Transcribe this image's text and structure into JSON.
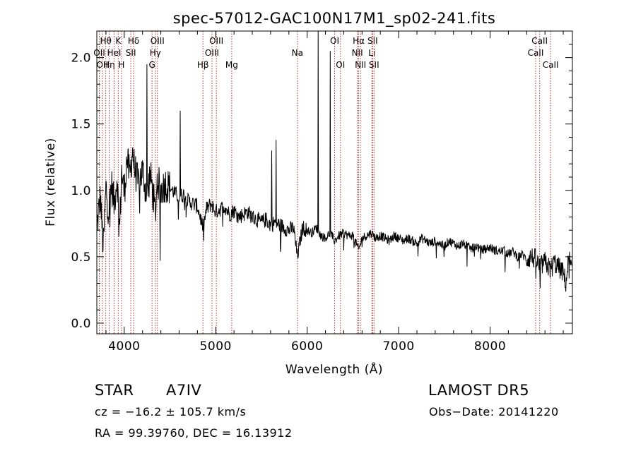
{
  "chart_data": {
    "type": "line",
    "title": "spec-57012-GAC100N17M1_sp02-241.fits",
    "xlabel": "Wavelength (Å)",
    "ylabel": "Flux (relative)",
    "xlim": [
      3700,
      8900
    ],
    "ylim": [
      -0.08,
      2.2
    ],
    "xticks": [
      4000,
      5000,
      6000,
      7000,
      8000
    ],
    "xtick_labels": [
      "4000",
      "5000",
      "6000",
      "7000",
      "8000"
    ],
    "yticks": [
      0.0,
      0.5,
      1.0,
      1.5,
      2.0
    ],
    "ytick_labels": [
      "0.0",
      "0.5",
      "1.0",
      "1.5",
      "2.0"
    ],
    "grid": false,
    "legend": "none",
    "line_color": "#000000",
    "marker_line_color": "#b03030",
    "series": [
      {
        "x": [
          3700,
          3740,
          3770,
          3800,
          3830,
          3860,
          3890,
          3920,
          3950,
          3970,
          4000,
          4030,
          4060,
          4090,
          4110,
          4150,
          4200,
          4250,
          4280,
          4300,
          4340,
          4360,
          4400,
          4450,
          4500,
          4550,
          4600,
          4650,
          4700,
          4750,
          4800,
          4862,
          4900,
          4950,
          5000,
          5050,
          5100,
          5150,
          5200,
          5250,
          5300,
          5350,
          5400,
          5450,
          5500,
          5550,
          5600,
          5650,
          5700,
          5750,
          5800,
          5850,
          5893,
          5950,
          6000,
          6050,
          6100,
          6150,
          6200,
          6250,
          6300,
          6350,
          6400,
          6450,
          6500,
          6563,
          6600,
          6650,
          6700,
          6750,
          6800,
          6850,
          6900,
          6950,
          7000,
          7050,
          7100,
          7150,
          7200,
          7250,
          7300,
          7350,
          7400,
          7450,
          7500,
          7550,
          7600,
          7650,
          7700,
          7750,
          7800,
          7850,
          7900,
          7950,
          8000,
          8050,
          8100,
          8150,
          8200,
          8250,
          8300,
          8350,
          8400,
          8450,
          8500,
          8542,
          8600,
          8662,
          8700,
          8750,
          8800,
          8830,
          8860,
          8890
        ],
        "y": [
          0.72,
          0.95,
          0.55,
          1.02,
          0.85,
          1.05,
          0.9,
          1.1,
          0.7,
          1.15,
          0.98,
          1.25,
          1.1,
          1.3,
          1.18,
          1.05,
          1.15,
          0.95,
          1.12,
          1.05,
          0.82,
          1.08,
          1.0,
          1.05,
          1.02,
          0.98,
          0.95,
          0.97,
          0.92,
          0.9,
          0.88,
          0.72,
          0.86,
          0.9,
          0.84,
          0.86,
          0.88,
          0.82,
          0.85,
          0.8,
          0.82,
          0.84,
          0.8,
          0.78,
          0.76,
          0.78,
          0.74,
          0.76,
          0.74,
          0.72,
          0.7,
          0.72,
          0.5,
          0.72,
          0.7,
          0.68,
          0.72,
          0.66,
          0.64,
          0.68,
          0.62,
          0.66,
          0.68,
          0.66,
          0.66,
          0.55,
          0.64,
          0.66,
          0.68,
          0.64,
          0.66,
          0.64,
          0.62,
          0.66,
          0.64,
          0.62,
          0.64,
          0.62,
          0.6,
          0.64,
          0.62,
          0.6,
          0.62,
          0.6,
          0.58,
          0.62,
          0.6,
          0.58,
          0.6,
          0.58,
          0.56,
          0.58,
          0.55,
          0.56,
          0.57,
          0.55,
          0.54,
          0.55,
          0.52,
          0.54,
          0.5,
          0.52,
          0.48,
          0.5,
          0.48,
          0.42,
          0.46,
          0.4,
          0.46,
          0.42,
          0.38,
          0.3,
          0.5,
          0.4
        ],
        "spikes": [
          {
            "x": 4248,
            "y": 1.95
          },
          {
            "x": 4610,
            "y": 1.6
          },
          {
            "x": 5610,
            "y": 1.3
          },
          {
            "x": 5660,
            "y": 1.38
          },
          {
            "x": 6120,
            "y": 2.2
          },
          {
            "x": 6250,
            "y": 2.05
          }
        ]
      }
    ],
    "line_markers": [
      {
        "x": 3727,
        "label": "OII",
        "row": 2
      },
      {
        "x": 3760,
        "label": "OII",
        "row": 3
      },
      {
        "x": 3798,
        "label": "Hθ",
        "row": 1
      },
      {
        "x": 3835,
        "label": "Hη",
        "row": 3
      },
      {
        "x": 3889,
        "label": "HeI",
        "row": 2
      },
      {
        "x": 3934,
        "label": "K",
        "row": 1
      },
      {
        "x": 3970,
        "label": "H",
        "row": 3
      },
      {
        "x": 4072,
        "label": "SII",
        "row": 2
      },
      {
        "x": 4102,
        "label": "Hδ",
        "row": 1
      },
      {
        "x": 4304,
        "label": "G",
        "row": 3
      },
      {
        "x": 4340,
        "label": "Hγ",
        "row": 2
      },
      {
        "x": 4363,
        "label": "OIII",
        "row": 1
      },
      {
        "x": 4861,
        "label": "Hβ",
        "row": 3
      },
      {
        "x": 4959,
        "label": "OIII",
        "row": 2
      },
      {
        "x": 5007,
        "label": "OIII",
        "row": 1
      },
      {
        "x": 5175,
        "label": "Mg",
        "row": 3
      },
      {
        "x": 5893,
        "label": "Na",
        "row": 2
      },
      {
        "x": 6300,
        "label": "OI",
        "row": 1
      },
      {
        "x": 6364,
        "label": "OI",
        "row": 3
      },
      {
        "x": 6548,
        "label": "NII",
        "row": 2
      },
      {
        "x": 6563,
        "label": "Hα",
        "row": 1
      },
      {
        "x": 6583,
        "label": "NII",
        "row": 3
      },
      {
        "x": 6708,
        "label": "Li",
        "row": 2
      },
      {
        "x": 6716,
        "label": "SII",
        "row": 1
      },
      {
        "x": 6731,
        "label": "SII",
        "row": 3
      },
      {
        "x": 8498,
        "label": "CaII",
        "row": 2
      },
      {
        "x": 8542,
        "label": "CaII",
        "row": 1
      },
      {
        "x": 8662,
        "label": "CaII",
        "row": 3
      }
    ]
  },
  "info": {
    "object_type": "STAR",
    "subclass": "A7IV",
    "survey": "LAMOST  DR5",
    "cz": "cz = −16.2 ± 105.7 km/s",
    "obs_date": "Obs−Date: 20141220",
    "coords": "RA =  99.39760, DEC =  16.13912"
  }
}
